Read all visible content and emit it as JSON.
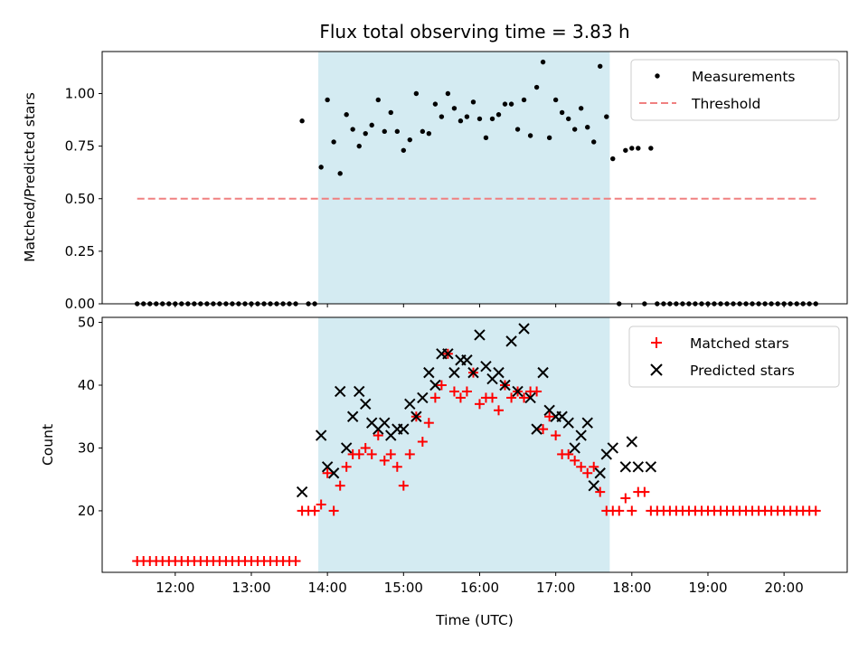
{
  "chart_data": [
    {
      "type": "scatter",
      "title": "Flux total observing time = 3.83 h",
      "ylabel": "Matched/Predicted stars",
      "xlabel": "",
      "ylim": [
        0,
        1.2
      ],
      "yticks": [
        0,
        0.25,
        0.5,
        0.75,
        1.0
      ],
      "ytick_labels": [
        "0.00",
        "0.25",
        "0.50",
        "0.75",
        "1.00"
      ],
      "shaded_interval": [
        13.88,
        17.71
      ],
      "threshold": {
        "value": 0.5,
        "x_range": [
          11.5,
          20.42
        ],
        "color": "#f08080"
      },
      "legend": [
        "Measurements",
        "Threshold"
      ],
      "series": [
        {
          "name": "Measurements",
          "x": [
            11.5,
            11.583,
            11.667,
            11.75,
            11.833,
            11.917,
            12.0,
            12.083,
            12.167,
            12.25,
            12.333,
            12.417,
            12.5,
            12.583,
            12.667,
            12.75,
            12.833,
            12.917,
            13.0,
            13.083,
            13.167,
            13.25,
            13.333,
            13.417,
            13.5,
            13.583,
            13.667,
            13.75,
            13.833,
            13.917,
            14.0,
            14.083,
            14.167,
            14.25,
            14.333,
            14.417,
            14.5,
            14.583,
            14.667,
            14.75,
            14.833,
            14.917,
            15.0,
            15.083,
            15.167,
            15.25,
            15.333,
            15.417,
            15.5,
            15.583,
            15.667,
            15.75,
            15.833,
            15.917,
            16.0,
            16.083,
            16.167,
            16.25,
            16.333,
            16.417,
            16.5,
            16.583,
            16.667,
            16.75,
            16.833,
            16.917,
            17.0,
            17.083,
            17.167,
            17.25,
            17.333,
            17.417,
            17.5,
            17.583,
            17.667,
            17.75,
            17.833,
            17.917,
            18.0,
            18.083,
            18.167,
            18.25,
            18.333,
            18.417,
            18.5,
            18.583,
            18.667,
            18.75,
            18.833,
            18.917,
            19.0,
            19.083,
            19.167,
            19.25,
            19.333,
            19.417,
            19.5,
            19.583,
            19.667,
            19.75,
            19.833,
            19.917,
            20.0,
            20.083,
            20.167,
            20.25,
            20.333,
            20.417
          ],
          "y": [
            0,
            0,
            0,
            0,
            0,
            0,
            0,
            0,
            0,
            0,
            0,
            0,
            0,
            0,
            0,
            0,
            0,
            0,
            0,
            0,
            0,
            0,
            0,
            0,
            0,
            0,
            0.87,
            0,
            0,
            0.65,
            0.97,
            0.77,
            0.62,
            0.9,
            0.83,
            0.75,
            0.81,
            0.85,
            0.97,
            0.82,
            0.91,
            0.82,
            0.73,
            0.78,
            1.0,
            0.82,
            0.81,
            0.95,
            0.89,
            1.0,
            0.93,
            0.87,
            0.89,
            0.96,
            0.88,
            0.79,
            0.88,
            0.9,
            0.95,
            0.95,
            0.83,
            0.97,
            0.8,
            1.03,
            1.15,
            0.79,
            0.97,
            0.91,
            0.88,
            0.83,
            0.93,
            0.84,
            0.77,
            1.13,
            0.89,
            0.69,
            0,
            0.73,
            0.74,
            0.74,
            0,
            0.74,
            0,
            0,
            0,
            0,
            0,
            0,
            0,
            0,
            0,
            0,
            0,
            0,
            0,
            0,
            0,
            0,
            0,
            0,
            0,
            0,
            0,
            0,
            0,
            0,
            0,
            0
          ]
        }
      ]
    },
    {
      "type": "scatter",
      "title": "",
      "xlabel": "Time (UTC)",
      "ylabel": "Count",
      "ylim": [
        10.2,
        50.8
      ],
      "yticks": [
        20,
        30,
        40,
        50
      ],
      "ytick_labels": [
        "20",
        "30",
        "40",
        "50"
      ],
      "xlim": [
        11.04,
        20.83
      ],
      "xticks": [
        12,
        13,
        14,
        15,
        16,
        17,
        18,
        19,
        20
      ],
      "xtick_labels": [
        "12:00",
        "13:00",
        "14:00",
        "15:00",
        "16:00",
        "17:00",
        "18:00",
        "19:00",
        "20:00"
      ],
      "shaded_interval": [
        13.88,
        17.71
      ],
      "legend": [
        "Matched stars",
        "Predicted stars"
      ],
      "series": [
        {
          "name": "Matched stars",
          "color": "#ff0000",
          "marker": "+",
          "x": [
            11.5,
            11.583,
            11.667,
            11.75,
            11.833,
            11.917,
            12.0,
            12.083,
            12.167,
            12.25,
            12.333,
            12.417,
            12.5,
            12.583,
            12.667,
            12.75,
            12.833,
            12.917,
            13.0,
            13.083,
            13.167,
            13.25,
            13.333,
            13.417,
            13.5,
            13.583,
            13.667,
            13.75,
            13.833,
            13.917,
            14.0,
            14.083,
            14.167,
            14.25,
            14.333,
            14.417,
            14.5,
            14.583,
            14.667,
            14.75,
            14.833,
            14.917,
            15.0,
            15.083,
            15.167,
            15.25,
            15.333,
            15.417,
            15.5,
            15.583,
            15.667,
            15.75,
            15.833,
            15.917,
            16.0,
            16.083,
            16.167,
            16.25,
            16.333,
            16.417,
            16.5,
            16.583,
            16.667,
            16.75,
            16.833,
            16.917,
            17.0,
            17.083,
            17.167,
            17.25,
            17.333,
            17.417,
            17.5,
            17.583,
            17.667,
            17.75,
            17.833,
            17.917,
            18.0,
            18.083,
            18.167,
            18.25,
            18.333,
            18.417,
            18.5,
            18.583,
            18.667,
            18.75,
            18.833,
            18.917,
            19.0,
            19.083,
            19.167,
            19.25,
            19.333,
            19.417,
            19.5,
            19.583,
            19.667,
            19.75,
            19.833,
            19.917,
            20.0,
            20.083,
            20.167,
            20.25,
            20.333,
            20.417
          ],
          "y": [
            12,
            12,
            12,
            12,
            12,
            12,
            12,
            12,
            12,
            12,
            12,
            12,
            12,
            12,
            12,
            12,
            12,
            12,
            12,
            12,
            12,
            12,
            12,
            12,
            12,
            12,
            20,
            20,
            20,
            21,
            26,
            20,
            24,
            27,
            29,
            29,
            30,
            29,
            32,
            28,
            29,
            27,
            24,
            29,
            35,
            31,
            34,
            38,
            40,
            45,
            39,
            38,
            39,
            42,
            37,
            38,
            38,
            36,
            40,
            38,
            39,
            38,
            39,
            39,
            33,
            35,
            32,
            29,
            29,
            28,
            27,
            26,
            27,
            23,
            20,
            20,
            20,
            22,
            20,
            23,
            23,
            20,
            20,
            20,
            20,
            20,
            20,
            20,
            20,
            20,
            20,
            20,
            20,
            20,
            20,
            20,
            20,
            20,
            20,
            20,
            20,
            20,
            20,
            20,
            20,
            20,
            20,
            20
          ]
        },
        {
          "name": "Predicted stars",
          "color": "#000000",
          "marker": "x",
          "x": [
            13.667,
            13.917,
            14.0,
            14.083,
            14.167,
            14.25,
            14.333,
            14.417,
            14.5,
            14.583,
            14.667,
            14.75,
            14.833,
            14.917,
            15.0,
            15.083,
            15.167,
            15.25,
            15.333,
            15.417,
            15.5,
            15.583,
            15.667,
            15.75,
            15.833,
            15.917,
            16.0,
            16.083,
            16.167,
            16.25,
            16.333,
            16.417,
            16.5,
            16.583,
            16.667,
            16.75,
            16.833,
            16.917,
            17.0,
            17.083,
            17.167,
            17.25,
            17.333,
            17.417,
            17.5,
            17.583,
            17.667,
            17.75,
            17.917,
            18.0,
            18.083,
            18.25
          ],
          "y": [
            23,
            32,
            27,
            26,
            39,
            30,
            35,
            39,
            37,
            34,
            33,
            34,
            32,
            33,
            33,
            37,
            35,
            38,
            42,
            40,
            45,
            45,
            42,
            44,
            44,
            42,
            48,
            43,
            41,
            42,
            40,
            47,
            39,
            49,
            38,
            33,
            42,
            36,
            35,
            35,
            34,
            30,
            32,
            34,
            24,
            26,
            29,
            30,
            27,
            31,
            27,
            27
          ]
        }
      ]
    }
  ]
}
